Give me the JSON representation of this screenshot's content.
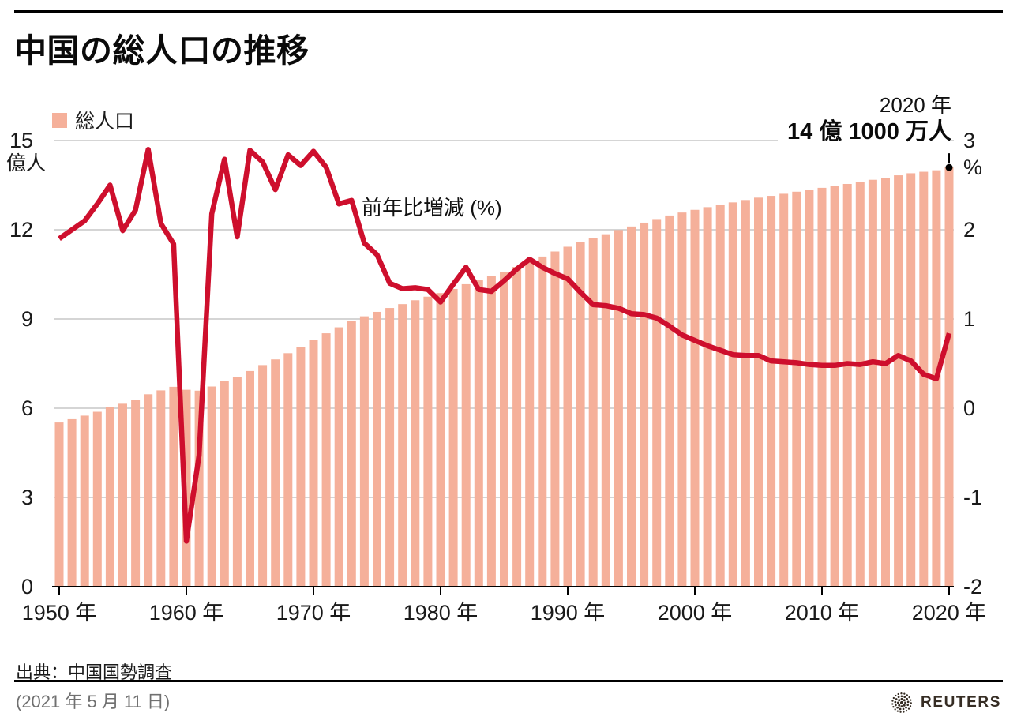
{
  "header": {
    "title": "中国の総人口の推移"
  },
  "legend": {
    "label": "総人口"
  },
  "annotation": {
    "year_line": "2020 年",
    "value_line": "14 億 1000 万人"
  },
  "line_label": "前年比増減 (%)",
  "footer": {
    "source": "出典：中国国勢調査",
    "date": "(2021 年 5 月 11 日)",
    "brand": "REUTERS"
  },
  "colors": {
    "bar": "#f5b09a",
    "line": "#ce0f2d",
    "grid": "#c7c7c7",
    "axis": "#000000",
    "text": "#1a1a1a",
    "muted": "#707070",
    "brand": "#362d24"
  },
  "chart_data": {
    "type": "combo",
    "title": "中国の総人口の推移",
    "grid": true,
    "legend_position": "top-left",
    "x_label_suffix": " 年",
    "x_ticks": [
      1950,
      1960,
      1970,
      1980,
      1990,
      2000,
      2010,
      2020
    ],
    "left_axis": {
      "unit": "億人",
      "ticks": [
        15,
        12,
        9,
        6,
        3,
        0
      ],
      "lim": [
        0,
        15
      ]
    },
    "right_axis": {
      "unit": "%",
      "ticks": [
        3,
        2,
        1,
        0,
        -1,
        -2
      ],
      "lim": [
        -2,
        3
      ]
    },
    "years": [
      1950,
      1951,
      1952,
      1953,
      1954,
      1955,
      1956,
      1957,
      1958,
      1959,
      1960,
      1961,
      1962,
      1963,
      1964,
      1965,
      1966,
      1967,
      1968,
      1969,
      1970,
      1971,
      1972,
      1973,
      1974,
      1975,
      1976,
      1977,
      1978,
      1979,
      1980,
      1981,
      1982,
      1983,
      1984,
      1985,
      1986,
      1987,
      1988,
      1989,
      1990,
      1991,
      1992,
      1993,
      1994,
      1995,
      1996,
      1997,
      1998,
      1999,
      2000,
      2001,
      2002,
      2003,
      2004,
      2005,
      2006,
      2007,
      2008,
      2009,
      2010,
      2011,
      2012,
      2013,
      2014,
      2015,
      2016,
      2017,
      2018,
      2019,
      2020
    ],
    "series": [
      {
        "name": "総人口",
        "type": "bar",
        "axis": "left",
        "unit": "億人",
        "values": [
          5.52,
          5.63,
          5.75,
          5.88,
          6.03,
          6.15,
          6.28,
          6.47,
          6.6,
          6.72,
          6.62,
          6.59,
          6.73,
          6.92,
          7.05,
          7.25,
          7.45,
          7.64,
          7.85,
          8.07,
          8.3,
          8.52,
          8.72,
          8.92,
          9.09,
          9.24,
          9.37,
          9.5,
          9.63,
          9.75,
          9.87,
          10.01,
          10.17,
          10.3,
          10.44,
          10.59,
          10.75,
          10.93,
          11.1,
          11.27,
          11.43,
          11.58,
          11.72,
          11.85,
          11.99,
          12.11,
          12.24,
          12.36,
          12.48,
          12.58,
          12.67,
          12.76,
          12.85,
          12.92,
          13.0,
          13.08,
          13.14,
          13.21,
          13.28,
          13.35,
          13.41,
          13.47,
          13.54,
          13.61,
          13.68,
          13.75,
          13.83,
          13.9,
          13.95,
          14.0,
          14.12
        ]
      },
      {
        "name": "前年比増減 (%)",
        "type": "line",
        "axis": "right",
        "unit": "%",
        "values": [
          1.9,
          2.0,
          2.1,
          2.29,
          2.5,
          1.99,
          2.22,
          2.9,
          2.07,
          1.84,
          -1.49,
          -0.53,
          2.18,
          2.79,
          1.92,
          2.89,
          2.76,
          2.45,
          2.84,
          2.72,
          2.88,
          2.7,
          2.29,
          2.33,
          1.85,
          1.72,
          1.4,
          1.34,
          1.35,
          1.33,
          1.19,
          1.39,
          1.58,
          1.33,
          1.31,
          1.43,
          1.56,
          1.67,
          1.58,
          1.51,
          1.45,
          1.3,
          1.16,
          1.15,
          1.12,
          1.06,
          1.05,
          1.01,
          0.92,
          0.82,
          0.76,
          0.7,
          0.65,
          0.6,
          0.59,
          0.59,
          0.53,
          0.52,
          0.51,
          0.49,
          0.48,
          0.48,
          0.5,
          0.49,
          0.52,
          0.5,
          0.59,
          0.53,
          0.38,
          0.33,
          0.84
        ]
      }
    ],
    "annotation": {
      "x": 2020,
      "text": [
        "2020 年",
        "14 億 1000 万人"
      ],
      "value_oku": 14.1
    }
  }
}
